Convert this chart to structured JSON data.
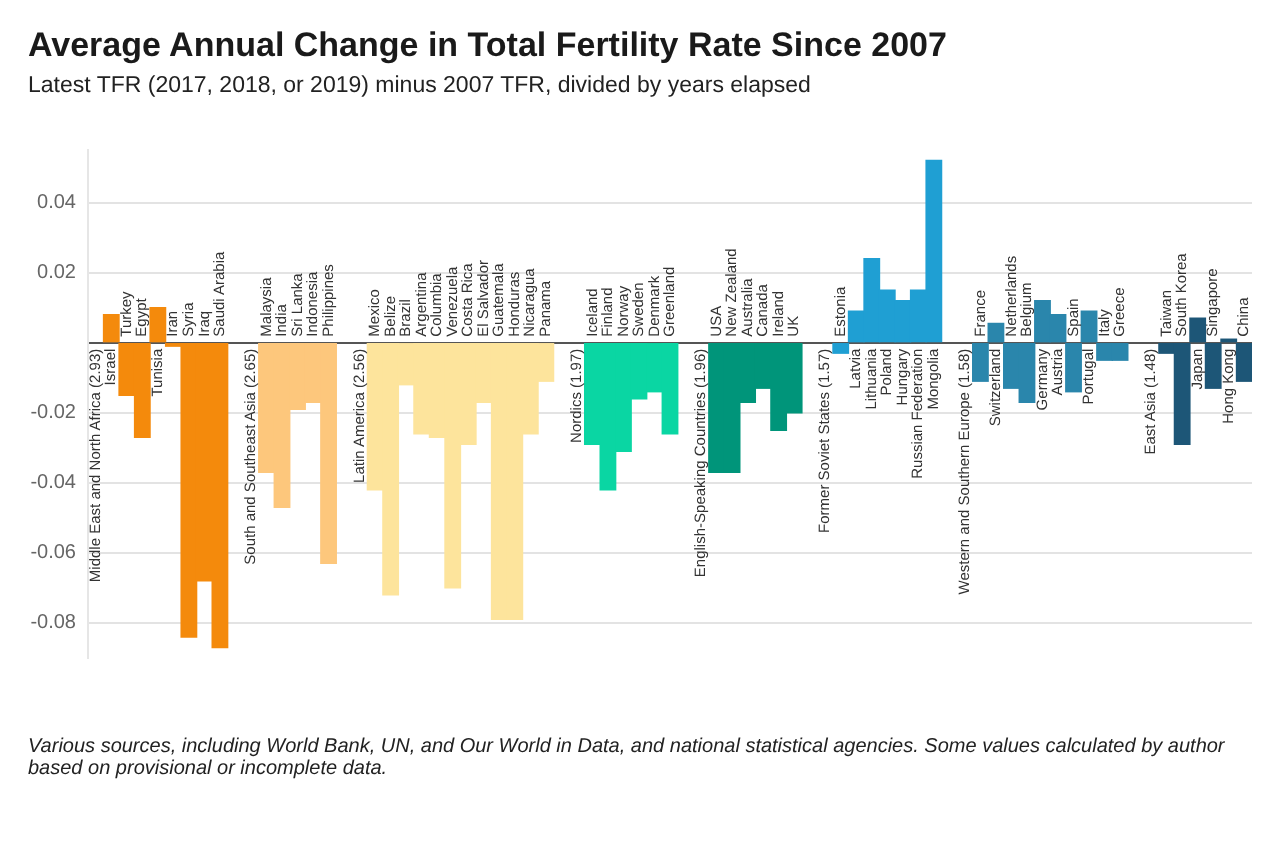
{
  "chart_data": {
    "type": "bar",
    "title": "Average Annual Change in Total Fertility Rate Since 2007",
    "subtitle": "Latest TFR (2017, 2018, or 2019) minus 2007 TFR, divided by years elapsed",
    "categories": [
      "Middle East and North Africa (2.93)",
      "Israel",
      "Turkey",
      "Egypt",
      "Tunisia",
      "Iran",
      "Syria",
      "Iraq",
      "Saudi Arabia",
      null,
      "South and Southeast Asia (2.65)",
      "Malaysia",
      "India",
      "Sri Lanka",
      "Indonesia",
      "Philippines",
      null,
      "Latin America (2.56)",
      "Mexico",
      "Belize",
      "Brazil",
      "Argentina",
      "Columbia",
      "Venezuela",
      "Costa Rica",
      "El Salvador",
      "Guatemala",
      "Honduras",
      "Nicaragua",
      "Panama",
      null,
      "Nordics (1.97)",
      "Iceland",
      "Finland",
      "Norway",
      "Sweden",
      "Denmark",
      "Greenland",
      null,
      "English-Speaking Countries (1.96)",
      "USA",
      "New Zealand",
      "Australia",
      "Canada",
      "Ireland",
      "UK",
      null,
      "Former Soviet States (1.57)",
      "Estonia",
      "Latvia",
      "Lithuania",
      "Poland",
      "Hungary",
      "Russian Federation",
      "Mongolia",
      null,
      "Western and Southern Europe (1.58)",
      "France",
      "Switzerland",
      "Netherlands",
      "Belgium",
      "Germany",
      "Austria",
      "Spain",
      "Portugal",
      "Italy",
      "Greece",
      null,
      "East Asia (1.48)",
      "Taiwan",
      "South Korea",
      "Japan",
      "Singapore",
      "Hong Kong",
      "China"
    ],
    "values": [
      null,
      0.008,
      -0.015,
      -0.027,
      0.01,
      -0.001,
      -0.084,
      -0.068,
      -0.087,
      null,
      null,
      -0.037,
      -0.047,
      -0.019,
      -0.017,
      -0.063,
      null,
      null,
      -0.042,
      -0.072,
      -0.012,
      -0.026,
      -0.027,
      -0.07,
      -0.029,
      -0.017,
      -0.079,
      -0.079,
      -0.026,
      -0.011,
      null,
      null,
      -0.029,
      -0.042,
      -0.031,
      -0.016,
      -0.014,
      -0.026,
      null,
      null,
      -0.037,
      -0.037,
      -0.017,
      -0.013,
      -0.025,
      -0.02,
      null,
      null,
      -0.003,
      0.009,
      0.024,
      0.015,
      0.012,
      0.015,
      0.052,
      null,
      null,
      -0.011,
      0.0055,
      -0.013,
      -0.017,
      0.012,
      0.008,
      -0.014,
      0.009,
      -0.005,
      -0.005,
      null,
      null,
      -0.003,
      -0.029,
      0.007,
      -0.013,
      0.001,
      -0.011
    ],
    "colors": [
      null,
      "#f48a0c",
      "#f48a0c",
      "#f48a0c",
      "#f48a0c",
      "#f48a0c",
      "#f48a0c",
      "#f48a0c",
      "#f48a0c",
      null,
      null,
      "#fdc77c",
      "#fdc77c",
      "#fdc77c",
      "#fdc77c",
      "#fdc77c",
      null,
      null,
      "#fde49c",
      "#fde49c",
      "#fde49c",
      "#fde49c",
      "#fde49c",
      "#fde49c",
      "#fde49c",
      "#fde49c",
      "#fde49c",
      "#fde49c",
      "#fde49c",
      "#fde49c",
      null,
      null,
      "#0ad6a3",
      "#0ad6a3",
      "#0ad6a3",
      "#0ad6a3",
      "#0ad6a3",
      "#0ad6a3",
      null,
      null,
      "#00957a",
      "#00957a",
      "#00957a",
      "#00957a",
      "#00957a",
      "#00957a",
      null,
      null,
      "#1f9fd3",
      "#1f9fd3",
      "#1f9fd3",
      "#1f9fd3",
      "#1f9fd3",
      "#1f9fd3",
      "#1f9fd3",
      null,
      null,
      "#2a86ac",
      "#2a86ac",
      "#2a86ac",
      "#2a86ac",
      "#2a86ac",
      "#2a86ac",
      "#2a86ac",
      "#2a86ac",
      "#2a86ac",
      "#2a86ac",
      null,
      null,
      "#1d5677",
      "#1d5677",
      "#1d5677",
      "#1d5677",
      "#1d5677",
      "#1d5677"
    ],
    "ylim": [
      -0.09,
      0.055
    ],
    "yticks": [
      0.04,
      0.02,
      {
        "value": 0,
        "label": null
      },
      -0.02,
      -0.04,
      -0.06,
      -0.08
    ],
    "grid": "y",
    "annotations": [
      "Various sources, including World Bank, UN, and Our World in Data, and national statistical agencies. Some values calculated by author based on provisional or incomplete data."
    ]
  }
}
